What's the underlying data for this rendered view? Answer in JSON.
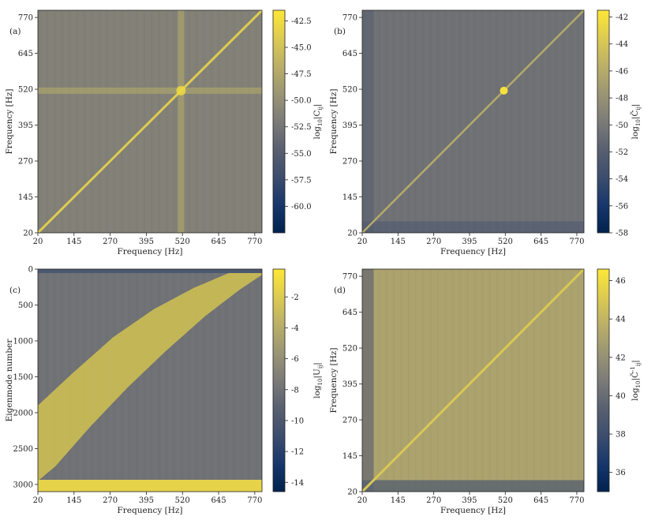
{
  "chart_data": [
    {
      "type": "heatmap",
      "panel_label": "(a)",
      "xlabel": "Frequency [Hz]",
      "ylabel": "Frequency [Hz]",
      "xticks": [
        "20",
        "145",
        "270",
        "395",
        "520",
        "645",
        "770"
      ],
      "yticks": [
        "20",
        "145",
        "270",
        "395",
        "520",
        "645",
        "770"
      ],
      "xlim": [
        20,
        795
      ],
      "ylim": [
        20,
        795
      ],
      "colorbar": {
        "label": "log10|Cij|",
        "label_parts": {
          "func": "log",
          "sub": "10",
          "var": "|C",
          "idx": "ij",
          "close": "|"
        },
        "min": -62.5,
        "max": -41.5,
        "ticks": [
          "-42.5",
          "-45.0",
          "-47.5",
          "-50.0",
          "-52.5",
          "-55.0",
          "-57.5",
          "-60.0"
        ],
        "colormap": "cividis"
      },
      "features": {
        "diagonal_value": -44,
        "background_value": -51.5,
        "cross_at_hz": 515,
        "cross_value": -47
      }
    },
    {
      "type": "heatmap",
      "panel_label": "(b)",
      "xlabel": "Frequency [Hz]",
      "ylabel": "Frequency [Hz]",
      "xticks": [
        "20",
        "145",
        "270",
        "395",
        "520",
        "645",
        "770"
      ],
      "yticks": [
        "20",
        "145",
        "270",
        "395",
        "520",
        "645",
        "770"
      ],
      "xlim": [
        20,
        795
      ],
      "ylim": [
        20,
        795
      ],
      "colorbar": {
        "label": "log10|C̃ij|",
        "label_parts": {
          "func": "log",
          "sub": "10",
          "var": "|C̃",
          "idx": "ij",
          "close": "|"
        },
        "min": -58,
        "max": -41.5,
        "ticks": [
          "-42",
          "-44",
          "-46",
          "-48",
          "-50",
          "-52",
          "-54",
          "-56",
          "-58"
        ],
        "colormap": "cividis"
      },
      "features": {
        "diagonal_value": -46,
        "background_value": -50.5,
        "bright_spot_hz": 515
      }
    },
    {
      "type": "heatmap",
      "panel_label": "(c)",
      "xlabel": "Frequency [Hz]",
      "ylabel": "Eigenmode number",
      "xticks": [
        "20",
        "145",
        "270",
        "395",
        "520",
        "645",
        "770"
      ],
      "yticks": [
        "0",
        "500",
        "1000",
        "1500",
        "2000",
        "2500",
        "3000"
      ],
      "xlim": [
        20,
        795
      ],
      "ylim": [
        3100,
        0
      ],
      "colorbar": {
        "label": "log10|Uij|",
        "label_parts": {
          "func": "log",
          "sub": "10",
          "var": "|U",
          "idx": "ij",
          "close": "|"
        },
        "min": -14.6,
        "max": -0.2,
        "ticks": [
          "-2",
          "-4",
          "-6",
          "-8",
          "-10",
          "-12",
          "-14"
        ],
        "colormap": "cividis"
      },
      "features": {
        "band_value": -1.5,
        "background_value": -8
      }
    },
    {
      "type": "heatmap",
      "panel_label": "(d)",
      "xlabel": "Frequency [Hz]",
      "ylabel": "Frequency [Hz]",
      "xticks": [
        "20",
        "145",
        "270",
        "395",
        "520",
        "645",
        "770"
      ],
      "yticks": [
        "20",
        "145",
        "270",
        "395",
        "520",
        "645",
        "770"
      ],
      "xlim": [
        20,
        795
      ],
      "ylim": [
        20,
        795
      ],
      "colorbar": {
        "label": "log10|C̃-1ij|",
        "label_parts": {
          "func": "log",
          "sub": "10",
          "var": "|C̃",
          "sup": "-1",
          "idx": "ij",
          "close": "|"
        },
        "min": 35,
        "max": 46.6,
        "ticks": [
          "46",
          "44",
          "42",
          "40",
          "38",
          "36"
        ],
        "colormap": "cividis"
      },
      "features": {
        "diagonal_value": 45,
        "background_value": 43
      }
    }
  ]
}
